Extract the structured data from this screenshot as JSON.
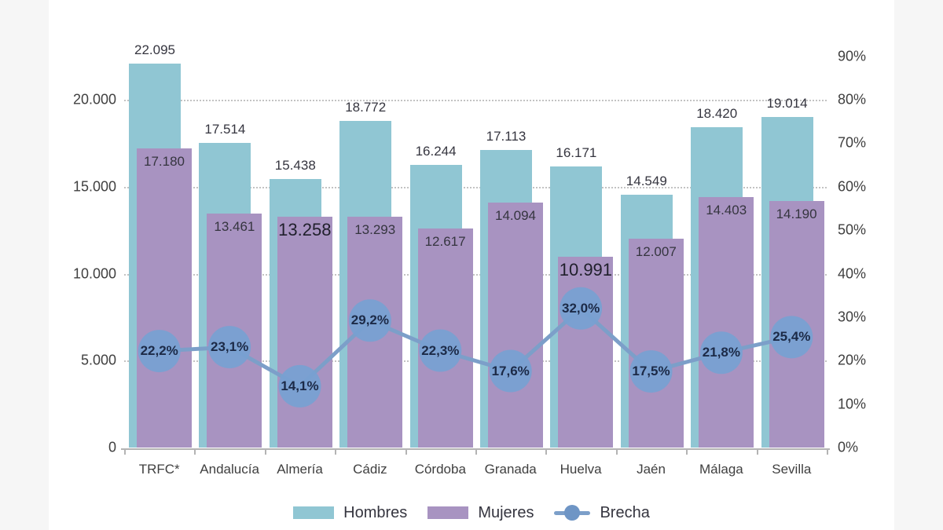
{
  "page": {
    "background": "#ffffff",
    "side_strip_color": "#f6f6f6"
  },
  "colors": {
    "hombres_bar": "#90c6d3",
    "mujeres_bar": "#a893c1",
    "brecha_line": "#7c9fc9",
    "brecha_marker": "#78a0d2",
    "grid": "#c3c3c3",
    "axis_line": "#b4b4b4",
    "axis_text": "#3f3f3f",
    "bar_label_text": "#35353f",
    "pct_label_text": "#1c2a47"
  },
  "left_axis": {
    "ticks": [
      {
        "value": 0,
        "label": "0"
      },
      {
        "value": 5000,
        "label": "5.000"
      },
      {
        "value": 10000,
        "label": "10.000"
      },
      {
        "value": 15000,
        "label": "15.000"
      },
      {
        "value": 20000,
        "label": "20.000"
      }
    ]
  },
  "right_axis": {
    "ticks": [
      {
        "value": 0,
        "label": "0%"
      },
      {
        "value": 10,
        "label": "10%"
      },
      {
        "value": 20,
        "label": "20%"
      },
      {
        "value": 30,
        "label": "30%"
      },
      {
        "value": 40,
        "label": "40%"
      },
      {
        "value": 50,
        "label": "50%"
      },
      {
        "value": 60,
        "label": "60%"
      },
      {
        "value": 70,
        "label": "70%"
      },
      {
        "value": 80,
        "label": "80%"
      },
      {
        "value": 90,
        "label": "90%"
      }
    ]
  },
  "legend": {
    "items": [
      {
        "label": "Hombres",
        "type": "swatch",
        "color": "#90c6d3"
      },
      {
        "label": "Mujeres",
        "type": "swatch",
        "color": "#a893c1"
      },
      {
        "label": "Brecha",
        "type": "line-marker",
        "line_color": "#7c9fc9",
        "marker_color": "#6e95c5"
      }
    ]
  },
  "chart_data": {
    "type": "bar",
    "subtype": "combo-bar-line",
    "categories": [
      "TRFC*",
      "Andalucía",
      "Almería",
      "Cádiz",
      "Córdoba",
      "Granada",
      "Huelva",
      "Jaén",
      "Málaga",
      "Sevilla"
    ],
    "series": [
      {
        "name": "Hombres",
        "type": "bar",
        "axis": "left",
        "color": "#90c6d3",
        "values": [
          22095,
          17514,
          15438,
          18772,
          16244,
          17113,
          16171,
          14549,
          18420,
          19014
        ],
        "labels": [
          "22.095",
          "17.514",
          "15.438",
          "18.772",
          "16.244",
          "17.113",
          "16.171",
          "14.549",
          "18.420",
          "19.014"
        ]
      },
      {
        "name": "Mujeres",
        "type": "bar",
        "axis": "left",
        "color": "#a893c1",
        "values": [
          17180,
          13461,
          13258,
          13293,
          12617,
          14094,
          10991,
          12007,
          14403,
          14190
        ],
        "labels": [
          "17.180",
          "13.461",
          "13.258",
          "13.293",
          "12.617",
          "14.094",
          "10.991",
          "12.007",
          "14.403",
          "14.190"
        ],
        "emphasized_indexes": [
          2,
          6
        ]
      },
      {
        "name": "Brecha",
        "type": "line",
        "axis": "right",
        "line_color": "#7c9fc9",
        "marker_color": "#78a0d2",
        "values": [
          22.2,
          23.1,
          14.1,
          29.2,
          22.3,
          17.6,
          32.0,
          17.5,
          21.8,
          25.4
        ],
        "labels": [
          "22,2%",
          "23,1%",
          "14,1%",
          "29,2%",
          "22,3%",
          "17,6%",
          "32,0%",
          "17,5%",
          "21,8%",
          "25,4%"
        ]
      }
    ],
    "left_ylim": [
      0,
      22500
    ],
    "right_ylim": [
      0,
      90
    ],
    "grid_values_left": [
      5000,
      10000,
      15000,
      20000
    ],
    "grid_style": "dotted",
    "legend_position": "bottom"
  }
}
